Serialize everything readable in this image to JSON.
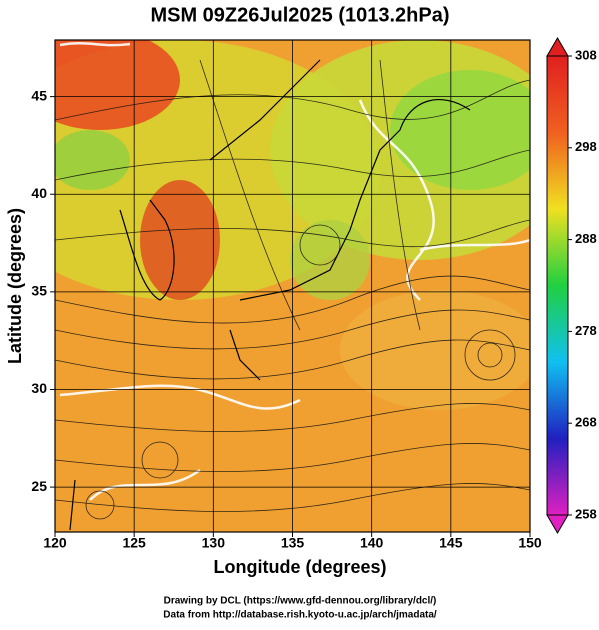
{
  "chart_data": {
    "type": "map",
    "title": "MSM 09Z26Jul2025 (1013.2hPa)",
    "x_label": "Longitude (degrees)",
    "y_label": "Latitude  (degrees)",
    "xlim": [
      120,
      150
    ],
    "xticks": [
      120,
      125,
      130,
      135,
      140,
      145,
      150
    ],
    "ylim": [
      22.7,
      47.9
    ],
    "yticks": [
      25,
      30,
      35,
      40,
      45
    ],
    "grid": true,
    "colorbar": {
      "lim": [
        258,
        308
      ],
      "ticks": [
        258,
        268,
        278,
        288,
        298,
        308
      ],
      "colors": [
        "#e020c0",
        "#2020c0",
        "#10c0f0",
        "#20d040",
        "#f0e020",
        "#f06020",
        "#e02020"
      ]
    },
    "footer": [
      "Drawing by DCL (https://www.gfd-dennou.org/library/dcl/)",
      "Data from http://database.rish.kyoto-u.ac.jp/arch/jmadata/"
    ]
  }
}
